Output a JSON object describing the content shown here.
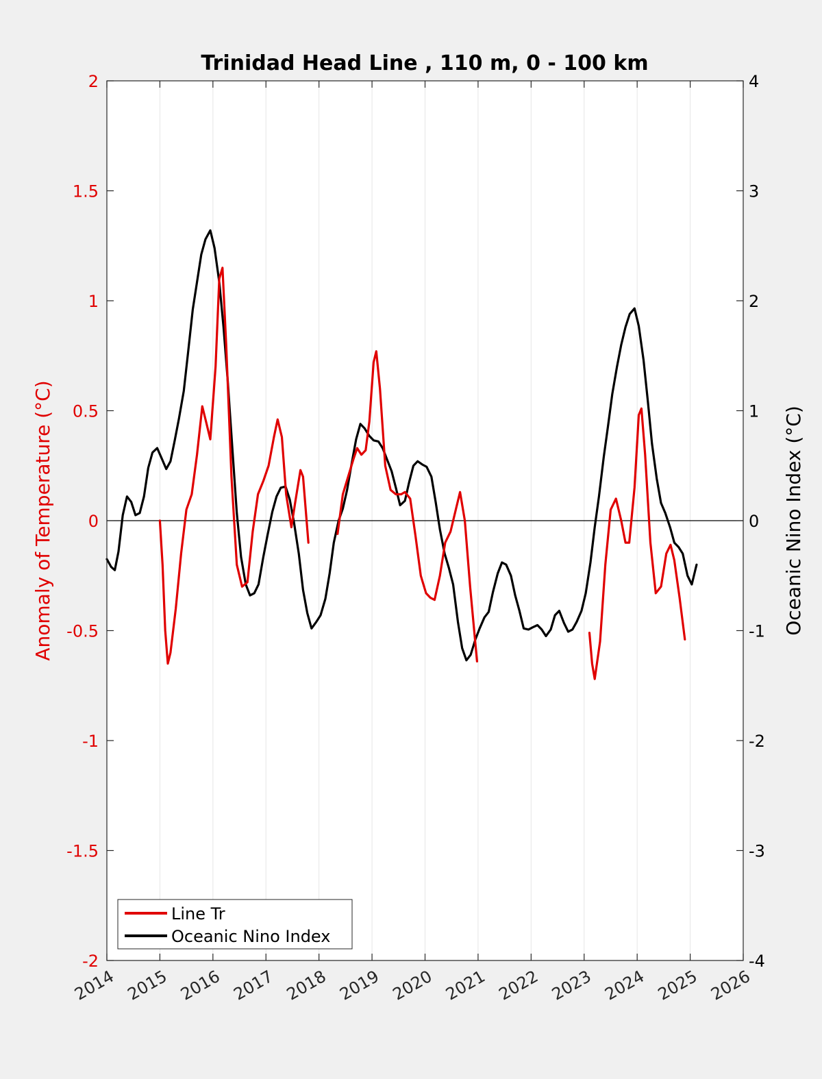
{
  "chart_data": {
    "type": "line",
    "title": "Trinidad Head Line , 110 m, 0 - 100 km",
    "ylabel_left": "Anomaly of Temperature (°C)",
    "ylabel_right": "Oceanic Nino Index (°C)",
    "xlim": [
      2014,
      2026
    ],
    "ylim_left": [
      -2,
      2
    ],
    "ylim_right": [
      -4,
      4
    ],
    "x_ticks": [
      "2014",
      "2015",
      "2016",
      "2017",
      "2018",
      "2019",
      "2020",
      "2021",
      "2022",
      "2023",
      "2024",
      "2025",
      "2026"
    ],
    "y_ticks_left": [
      "2",
      "1.5",
      "1",
      "0.5",
      "0",
      "-0.5",
      "-1",
      "-1.5",
      "-2"
    ],
    "y_ticks_right": [
      "4",
      "3",
      "2",
      "1",
      "0",
      "-1",
      "-2",
      "-3",
      "-4"
    ],
    "grid": "vertical",
    "legend_position": "bottom-left",
    "colors": {
      "line_tr": "#e00000",
      "oni": "#000000"
    },
    "series": [
      {
        "name": "Line Tr",
        "axis": "left",
        "segments": [
          [
            [
              2015.0,
              0.0
            ],
            [
              2015.05,
              -0.2
            ],
            [
              2015.1,
              -0.5
            ],
            [
              2015.15,
              -0.65
            ],
            [
              2015.2,
              -0.6
            ],
            [
              2015.3,
              -0.4
            ],
            [
              2015.4,
              -0.15
            ],
            [
              2015.5,
              0.05
            ],
            [
              2015.6,
              0.12
            ],
            [
              2015.7,
              0.3
            ],
            [
              2015.8,
              0.52
            ],
            [
              2015.87,
              0.45
            ],
            [
              2015.95,
              0.37
            ],
            [
              2016.05,
              0.7
            ],
            [
              2016.12,
              1.1
            ],
            [
              2016.18,
              1.15
            ],
            [
              2016.25,
              0.8
            ],
            [
              2016.35,
              0.2
            ],
            [
              2016.45,
              -0.2
            ],
            [
              2016.55,
              -0.3
            ],
            [
              2016.65,
              -0.28
            ],
            [
              2016.75,
              -0.05
            ],
            [
              2016.85,
              0.12
            ],
            [
              2016.95,
              0.18
            ],
            [
              2017.05,
              0.25
            ],
            [
              2017.15,
              0.38
            ],
            [
              2017.22,
              0.46
            ],
            [
              2017.3,
              0.38
            ],
            [
              2017.38,
              0.12
            ],
            [
              2017.48,
              -0.03
            ],
            [
              2017.55,
              0.08
            ],
            [
              2017.65,
              0.23
            ],
            [
              2017.7,
              0.2
            ],
            [
              2017.8,
              -0.1
            ]
          ],
          [
            [
              2018.35,
              -0.06
            ],
            [
              2018.45,
              0.12
            ],
            [
              2018.55,
              0.2
            ],
            [
              2018.65,
              0.28
            ],
            [
              2018.72,
              0.33
            ],
            [
              2018.8,
              0.3
            ],
            [
              2018.88,
              0.32
            ],
            [
              2018.95,
              0.45
            ],
            [
              2019.03,
              0.72
            ],
            [
              2019.08,
              0.77
            ],
            [
              2019.15,
              0.6
            ],
            [
              2019.25,
              0.25
            ],
            [
              2019.35,
              0.14
            ],
            [
              2019.45,
              0.12
            ],
            [
              2019.55,
              0.12
            ],
            [
              2019.62,
              0.13
            ],
            [
              2019.72,
              0.1
            ],
            [
              2019.82,
              -0.07
            ],
            [
              2019.92,
              -0.25
            ],
            [
              2020.02,
              -0.33
            ],
            [
              2020.1,
              -0.35
            ],
            [
              2020.18,
              -0.36
            ],
            [
              2020.28,
              -0.25
            ],
            [
              2020.38,
              -0.1
            ],
            [
              2020.48,
              -0.05
            ],
            [
              2020.58,
              0.05
            ],
            [
              2020.66,
              0.13
            ],
            [
              2020.75,
              0.0
            ],
            [
              2020.85,
              -0.3
            ],
            [
              2020.98,
              -0.64
            ]
          ],
          [
            [
              2023.1,
              -0.51
            ],
            [
              2023.15,
              -0.65
            ],
            [
              2023.2,
              -0.72
            ],
            [
              2023.3,
              -0.55
            ],
            [
              2023.4,
              -0.2
            ],
            [
              2023.5,
              0.05
            ],
            [
              2023.6,
              0.1
            ],
            [
              2023.7,
              0.0
            ],
            [
              2023.78,
              -0.1
            ],
            [
              2023.85,
              -0.1
            ],
            [
              2023.95,
              0.15
            ],
            [
              2024.03,
              0.48
            ],
            [
              2024.08,
              0.51
            ],
            [
              2024.15,
              0.3
            ],
            [
              2024.25,
              -0.1
            ],
            [
              2024.35,
              -0.33
            ],
            [
              2024.45,
              -0.3
            ],
            [
              2024.55,
              -0.15
            ],
            [
              2024.63,
              -0.11
            ],
            [
              2024.7,
              -0.18
            ],
            [
              2024.8,
              -0.35
            ],
            [
              2024.9,
              -0.54
            ]
          ]
        ]
      },
      {
        "name": "Oceanic Nino Index",
        "axis": "right",
        "segments": [
          [
            [
              2014.0,
              -0.35
            ],
            [
              2014.08,
              -0.42
            ],
            [
              2014.15,
              -0.45
            ],
            [
              2014.22,
              -0.28
            ],
            [
              2014.3,
              0.05
            ],
            [
              2014.38,
              0.22
            ],
            [
              2014.46,
              0.17
            ],
            [
              2014.54,
              0.05
            ],
            [
              2014.62,
              0.07
            ],
            [
              2014.7,
              0.22
            ],
            [
              2014.78,
              0.48
            ],
            [
              2014.86,
              0.62
            ],
            [
              2014.95,
              0.66
            ],
            [
              2015.04,
              0.56
            ],
            [
              2015.12,
              0.47
            ],
            [
              2015.2,
              0.54
            ],
            [
              2015.28,
              0.73
            ],
            [
              2015.36,
              0.93
            ],
            [
              2015.45,
              1.18
            ],
            [
              2015.53,
              1.52
            ],
            [
              2015.62,
              1.92
            ],
            [
              2015.7,
              2.17
            ],
            [
              2015.78,
              2.42
            ],
            [
              2015.86,
              2.56
            ],
            [
              2015.95,
              2.64
            ],
            [
              2016.03,
              2.48
            ],
            [
              2016.12,
              2.17
            ],
            [
              2016.2,
              1.76
            ],
            [
              2016.28,
              1.27
            ],
            [
              2016.37,
              0.63
            ],
            [
              2016.45,
              0.07
            ],
            [
              2016.53,
              -0.33
            ],
            [
              2016.62,
              -0.58
            ],
            [
              2016.7,
              -0.68
            ],
            [
              2016.78,
              -0.66
            ],
            [
              2016.86,
              -0.58
            ],
            [
              2016.95,
              -0.33
            ],
            [
              2017.03,
              -0.13
            ],
            [
              2017.12,
              0.08
            ],
            [
              2017.2,
              0.22
            ],
            [
              2017.28,
              0.3
            ],
            [
              2017.37,
              0.31
            ],
            [
              2017.45,
              0.19
            ],
            [
              2017.53,
              -0.02
            ],
            [
              2017.62,
              -0.3
            ],
            [
              2017.7,
              -0.63
            ],
            [
              2017.78,
              -0.84
            ],
            [
              2017.86,
              -0.98
            ],
            [
              2017.95,
              -0.92
            ],
            [
              2018.03,
              -0.86
            ],
            [
              2018.12,
              -0.71
            ],
            [
              2018.2,
              -0.48
            ],
            [
              2018.28,
              -0.2
            ],
            [
              2018.37,
              0.0
            ],
            [
              2018.45,
              0.11
            ],
            [
              2018.53,
              0.28
            ],
            [
              2018.62,
              0.53
            ],
            [
              2018.7,
              0.74
            ],
            [
              2018.78,
              0.88
            ],
            [
              2018.86,
              0.84
            ],
            [
              2018.95,
              0.77
            ],
            [
              2019.03,
              0.73
            ],
            [
              2019.12,
              0.72
            ],
            [
              2019.2,
              0.66
            ],
            [
              2019.28,
              0.56
            ],
            [
              2019.37,
              0.45
            ],
            [
              2019.45,
              0.3
            ],
            [
              2019.53,
              0.14
            ],
            [
              2019.62,
              0.18
            ],
            [
              2019.7,
              0.35
            ],
            [
              2019.78,
              0.5
            ],
            [
              2019.86,
              0.54
            ],
            [
              2019.95,
              0.51
            ],
            [
              2020.03,
              0.49
            ],
            [
              2020.12,
              0.4
            ],
            [
              2020.2,
              0.17
            ],
            [
              2020.28,
              -0.08
            ],
            [
              2020.37,
              -0.3
            ],
            [
              2020.45,
              -0.43
            ],
            [
              2020.53,
              -0.58
            ],
            [
              2020.62,
              -0.92
            ],
            [
              2020.7,
              -1.16
            ],
            [
              2020.78,
              -1.27
            ],
            [
              2020.86,
              -1.22
            ],
            [
              2020.95,
              -1.08
            ],
            [
              2021.03,
              -0.98
            ],
            [
              2021.12,
              -0.88
            ],
            [
              2021.2,
              -0.83
            ],
            [
              2021.28,
              -0.65
            ],
            [
              2021.37,
              -0.48
            ],
            [
              2021.45,
              -0.38
            ],
            [
              2021.53,
              -0.4
            ],
            [
              2021.62,
              -0.5
            ],
            [
              2021.7,
              -0.68
            ],
            [
              2021.78,
              -0.82
            ],
            [
              2021.86,
              -0.98
            ],
            [
              2021.95,
              -0.99
            ],
            [
              2022.03,
              -0.97
            ],
            [
              2022.12,
              -0.95
            ],
            [
              2022.2,
              -0.99
            ],
            [
              2022.28,
              -1.05
            ],
            [
              2022.37,
              -0.99
            ],
            [
              2022.45,
              -0.86
            ],
            [
              2022.53,
              -0.82
            ],
            [
              2022.62,
              -0.93
            ],
            [
              2022.7,
              -1.01
            ],
            [
              2022.78,
              -0.99
            ],
            [
              2022.86,
              -0.92
            ],
            [
              2022.95,
              -0.82
            ],
            [
              2023.03,
              -0.66
            ],
            [
              2023.12,
              -0.38
            ],
            [
              2023.2,
              -0.06
            ],
            [
              2023.28,
              0.22
            ],
            [
              2023.37,
              0.58
            ],
            [
              2023.45,
              0.86
            ],
            [
              2023.53,
              1.15
            ],
            [
              2023.62,
              1.4
            ],
            [
              2023.7,
              1.6
            ],
            [
              2023.78,
              1.76
            ],
            [
              2023.86,
              1.88
            ],
            [
              2023.95,
              1.93
            ],
            [
              2024.03,
              1.77
            ],
            [
              2024.12,
              1.46
            ],
            [
              2024.2,
              1.09
            ],
            [
              2024.28,
              0.7
            ],
            [
              2024.37,
              0.38
            ],
            [
              2024.45,
              0.16
            ],
            [
              2024.53,
              0.07
            ],
            [
              2024.62,
              -0.06
            ],
            [
              2024.7,
              -0.2
            ],
            [
              2024.78,
              -0.24
            ],
            [
              2024.86,
              -0.3
            ],
            [
              2024.95,
              -0.5
            ],
            [
              2025.03,
              -0.58
            ],
            [
              2025.12,
              -0.4
            ]
          ]
        ]
      }
    ]
  }
}
